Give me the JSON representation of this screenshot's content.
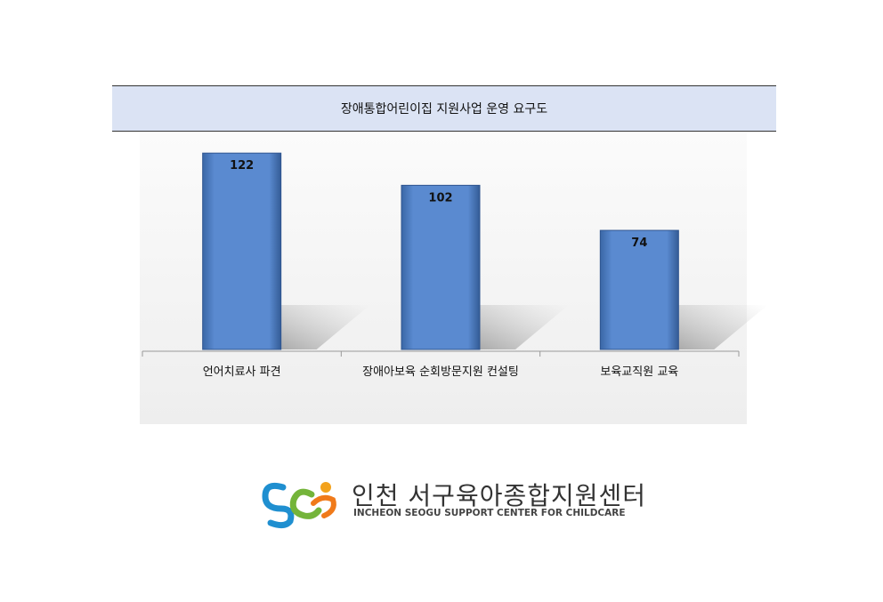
{
  "chart_data": {
    "type": "bar",
    "title": "장애통합어린이집 지원사업 운영 요구도",
    "categories": [
      "언어치료사 파견",
      "장애아보육 순회방문지원 컨설팅",
      "보육교직원 교육"
    ],
    "values": [
      122,
      102,
      74
    ],
    "color": "#4f81bd"
  },
  "logo": {
    "name": "인천 서구육아종합지원센터",
    "subtitle": "INCHEON SEOGU SUPPORT CENTER FOR CHILDCARE"
  }
}
